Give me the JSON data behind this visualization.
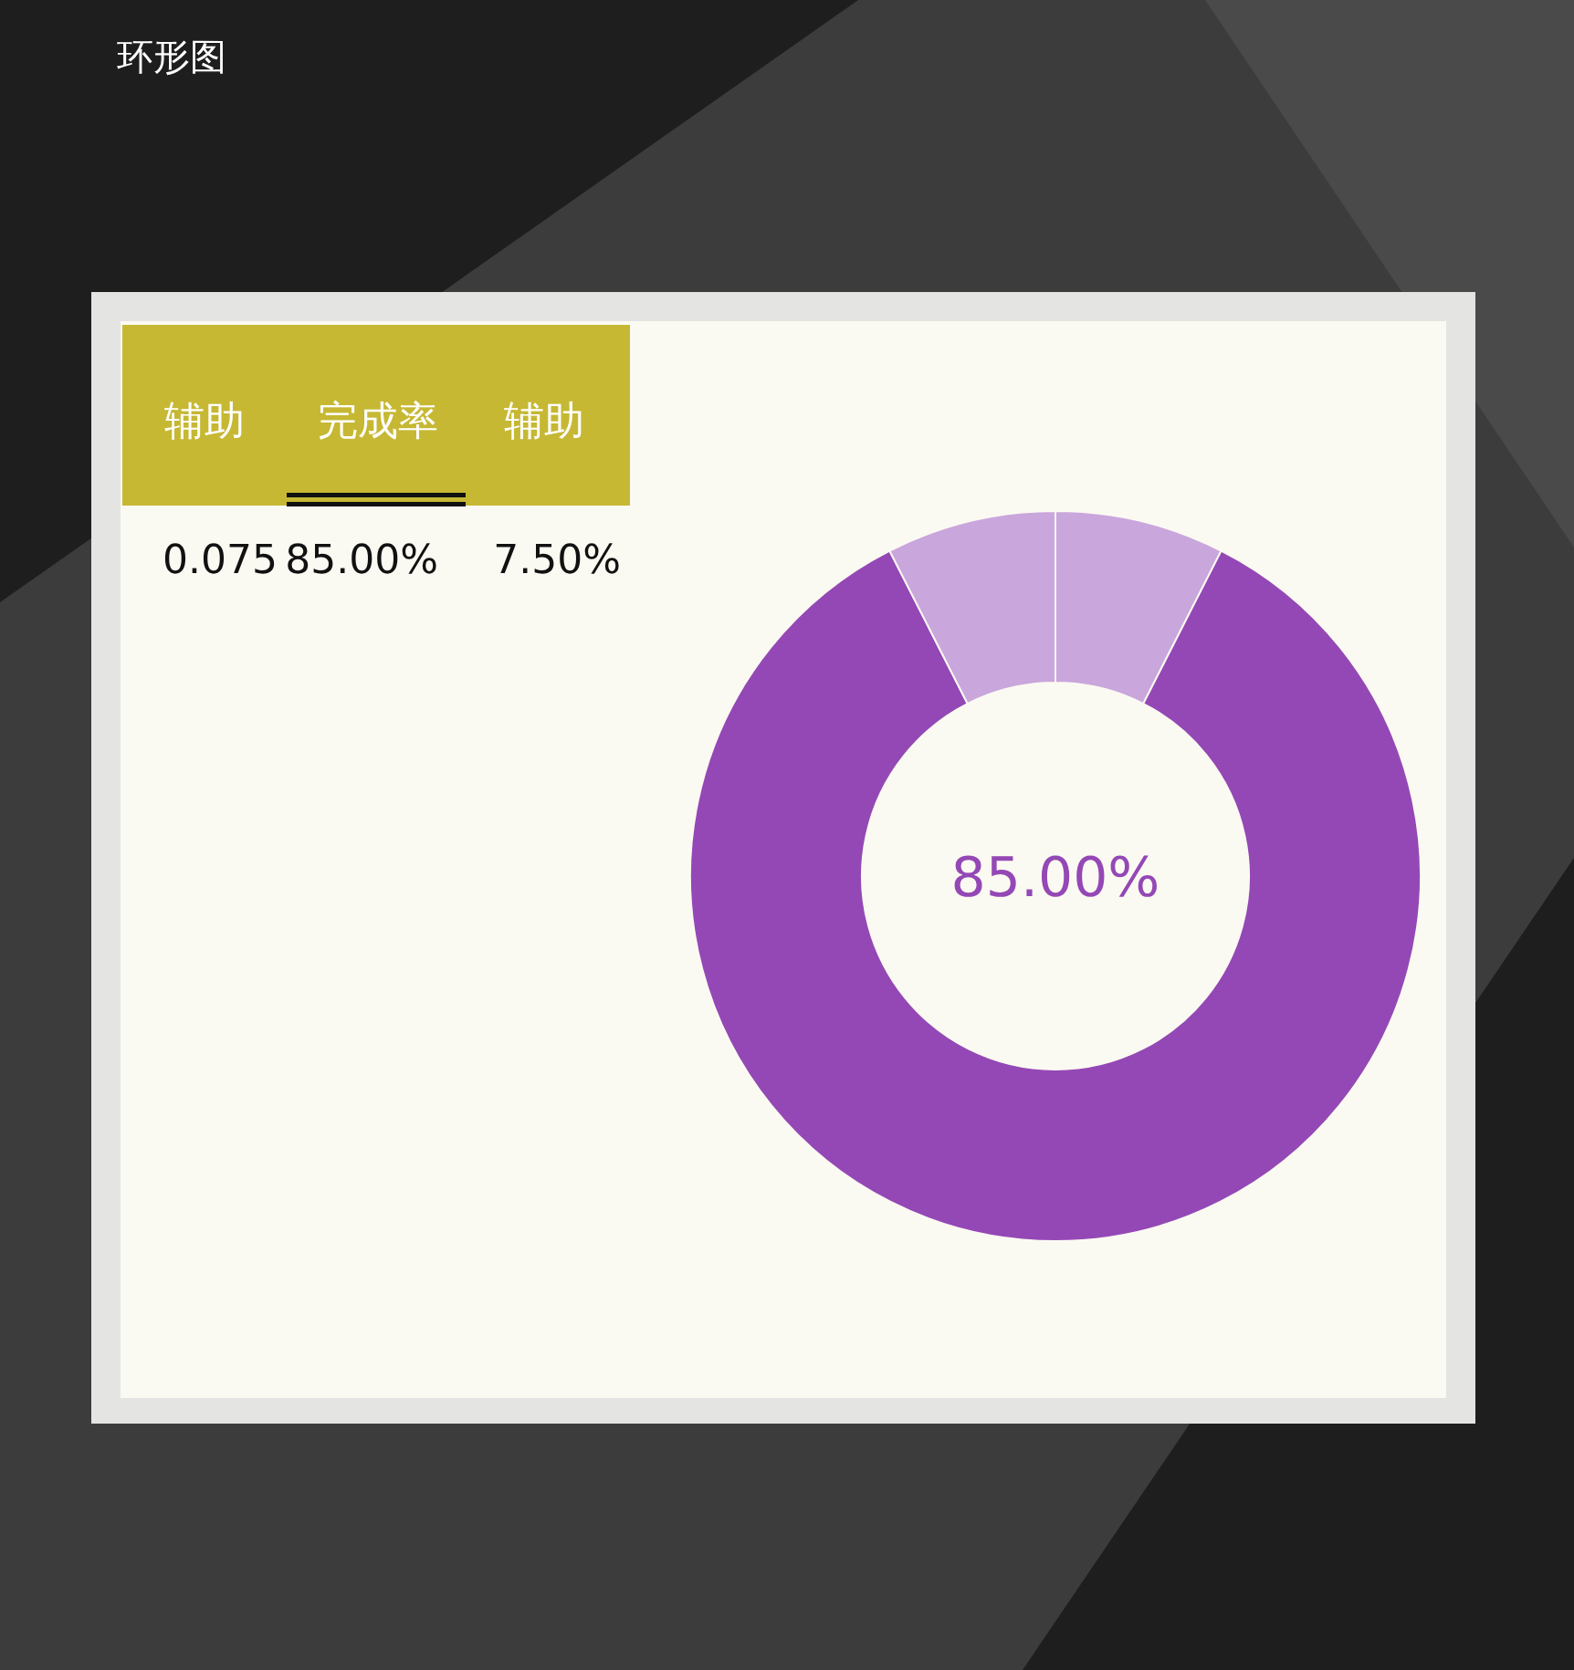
{
  "chart_data": {
    "type": "donut",
    "title": "环形图",
    "categories": [
      null,
      null,
      null
    ],
    "values": [
      7.5,
      85,
      7.5
    ],
    "colors": [
      "#c9a6dc",
      "#9448b5",
      "#c9a6dc"
    ],
    "annotations": [
      "辅助",
      "完成率",
      "辅助",
      "0.075",
      "85.00%",
      "7.50%",
      "85.00%"
    ],
    "legend": false
  }
}
